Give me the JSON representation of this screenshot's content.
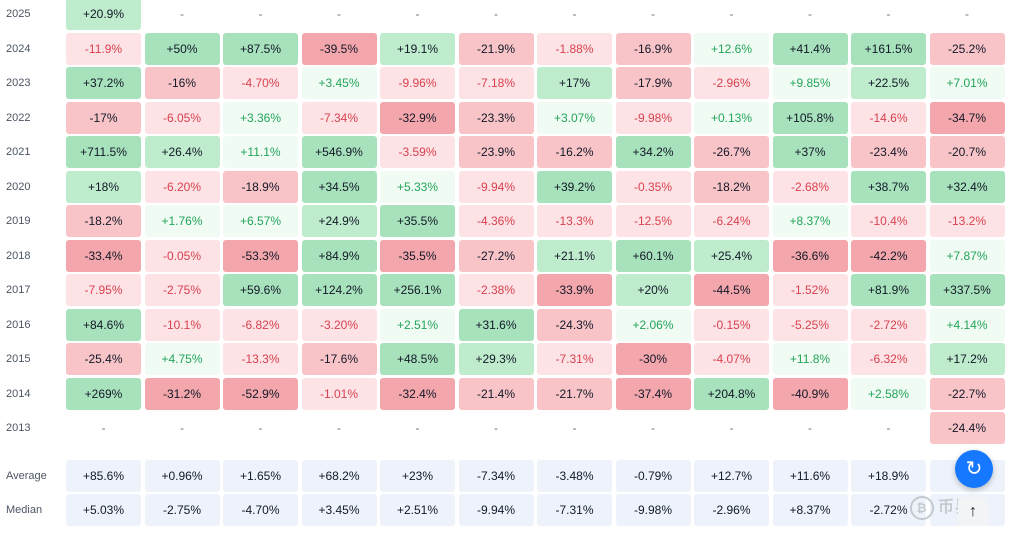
{
  "colors": {
    "positive_light_bg": "#f0fbf4",
    "positive_bg": "#a8e2bc",
    "negative_light_bg": "#fde3e5",
    "negative_bg": "#f3a6ab",
    "stat_bg": "#eef3fb"
  },
  "icons": {
    "refresh": "refresh-icon",
    "scroll_top": "arrow-up-icon"
  },
  "watermark": {
    "text": "币界网"
  },
  "chart_data": {
    "type": "table",
    "title": "",
    "columns": 12,
    "rows": [
      {
        "label": "2025",
        "values": [
          "+20.9%",
          "-",
          "-",
          "-",
          "-",
          "-",
          "-",
          "-",
          "-",
          "-",
          "-",
          "-"
        ]
      },
      {
        "label": "2024",
        "values": [
          "-11.9%",
          "+50%",
          "+87.5%",
          "-39.5%",
          "+19.1%",
          "-21.9%",
          "-1.88%",
          "-16.9%",
          "+12.6%",
          "+41.4%",
          "+161.5%",
          "-25.2%"
        ]
      },
      {
        "label": "2023",
        "values": [
          "+37.2%",
          "-16%",
          "-4.70%",
          "+3.45%",
          "-9.96%",
          "-7.18%",
          "+17%",
          "-17.9%",
          "-2.96%",
          "+9.85%",
          "+22.5%",
          "+7.01%"
        ]
      },
      {
        "label": "2022",
        "values": [
          "-17%",
          "-6.05%",
          "+3.36%",
          "-7.34%",
          "-32.9%",
          "-23.3%",
          "+3.07%",
          "-9.98%",
          "+0.13%",
          "+105.8%",
          "-14.6%",
          "-34.7%"
        ]
      },
      {
        "label": "2021",
        "values": [
          "+711.5%",
          "+26.4%",
          "+11.1%",
          "+546.9%",
          "-3.59%",
          "-23.9%",
          "-16.2%",
          "+34.2%",
          "-26.7%",
          "+37%",
          "-23.4%",
          "-20.7%"
        ]
      },
      {
        "label": "2020",
        "values": [
          "+18%",
          "-6.20%",
          "-18.9%",
          "+34.5%",
          "+5.33%",
          "-9.94%",
          "+39.2%",
          "-0.35%",
          "-18.2%",
          "-2.68%",
          "+38.7%",
          "+32.4%"
        ]
      },
      {
        "label": "2019",
        "values": [
          "-18.2%",
          "+1.76%",
          "+6.57%",
          "+24.9%",
          "+35.5%",
          "-4.36%",
          "-13.3%",
          "-12.5%",
          "-6.24%",
          "+8.37%",
          "-10.4%",
          "-13.2%"
        ]
      },
      {
        "label": "2018",
        "values": [
          "-33.4%",
          "-0.05%",
          "-53.3%",
          "+84.9%",
          "-35.5%",
          "-27.2%",
          "+21.1%",
          "+60.1%",
          "+25.4%",
          "-36.6%",
          "-42.2%",
          "+7.87%"
        ]
      },
      {
        "label": "2017",
        "values": [
          "-7.95%",
          "-2.75%",
          "+59.6%",
          "+124.2%",
          "+256.1%",
          "-2.38%",
          "-33.9%",
          "+20%",
          "-44.5%",
          "-1.52%",
          "+81.9%",
          "+337.5%"
        ]
      },
      {
        "label": "2016",
        "values": [
          "+84.6%",
          "-10.1%",
          "-6.82%",
          "-3.20%",
          "+2.51%",
          "+31.6%",
          "-24.3%",
          "+2.06%",
          "-0.15%",
          "-5.25%",
          "-2.72%",
          "+4.14%"
        ]
      },
      {
        "label": "2015",
        "values": [
          "-25.4%",
          "+4.75%",
          "-13.3%",
          "-17.6%",
          "+48.5%",
          "+29.3%",
          "-7.31%",
          "-30%",
          "-4.07%",
          "+11.8%",
          "-6.32%",
          "+17.2%"
        ]
      },
      {
        "label": "2014",
        "values": [
          "+269%",
          "-31.2%",
          "-52.9%",
          "-1.01%",
          "-32.4%",
          "-21.4%",
          "-21.7%",
          "-37.4%",
          "+204.8%",
          "-40.9%",
          "+2.58%",
          "-22.7%"
        ]
      },
      {
        "label": "2013",
        "values": [
          "-",
          "-",
          "-",
          "-",
          "-",
          "-",
          "-",
          "-",
          "-",
          "-",
          "-",
          "-24.4%"
        ]
      }
    ],
    "stats": [
      {
        "label": "Average",
        "values": [
          "+85.6%",
          "+0.96%",
          "+1.65%",
          "+68.2%",
          "+23%",
          "-7.34%",
          "-3.48%",
          "-0.79%",
          "+12.7%",
          "+11.6%",
          "+18.9%",
          ""
        ]
      },
      {
        "label": "Median",
        "values": [
          "+5.03%",
          "-2.75%",
          "-4.70%",
          "+3.45%",
          "+2.51%",
          "-9.94%",
          "-7.31%",
          "-9.98%",
          "-2.96%",
          "+8.37%",
          "-2.72%",
          ""
        ]
      }
    ]
  }
}
